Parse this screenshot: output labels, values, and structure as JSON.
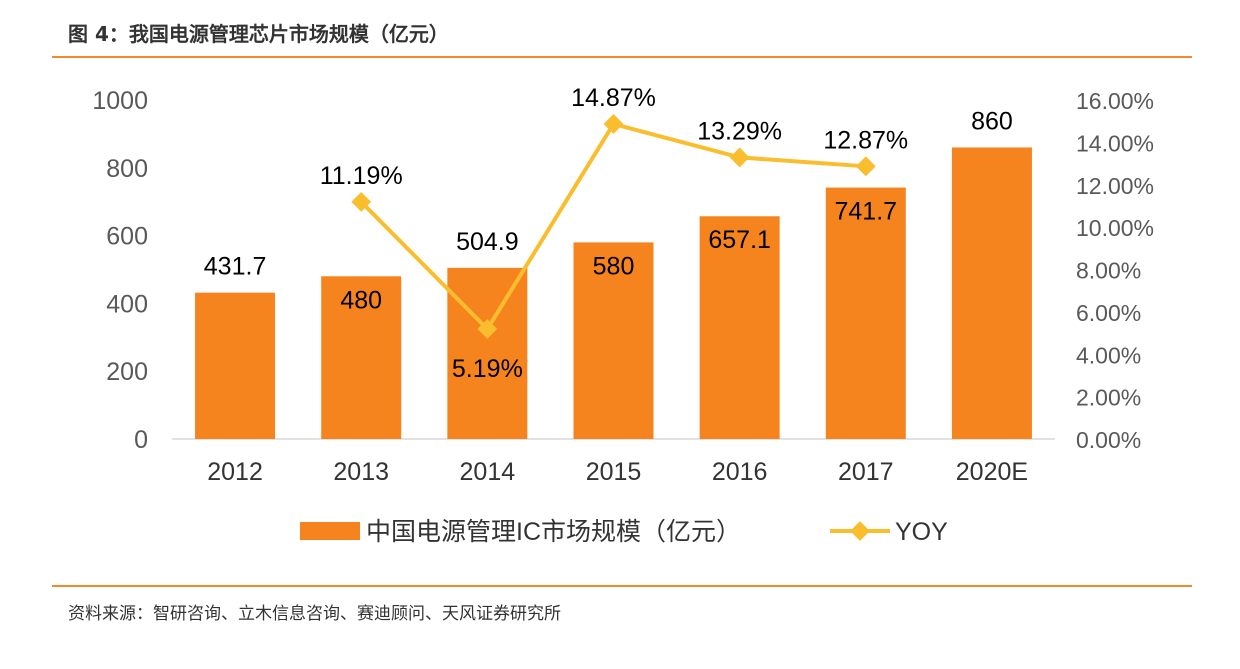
{
  "title": "图 4：我国电源管理芯片市场规模（亿元）",
  "source": "资料来源：智研咨询、立木信息咨询、赛迪顾问、天风证券研究所",
  "chart_data": {
    "type": "bar+line",
    "categories": [
      "2012",
      "2013",
      "2014",
      "2015",
      "2016",
      "2017",
      "2020E"
    ],
    "series": [
      {
        "name": "中国电源管理IC市场规模（亿元）",
        "type": "bar",
        "axis": "left",
        "color": "#f5841f",
        "values": [
          431.7,
          480,
          504.9,
          580,
          657.1,
          741.7,
          860
        ],
        "labels": [
          "431.7",
          "480",
          "504.9",
          "580",
          "657.1",
          "741.7",
          "860"
        ]
      },
      {
        "name": "YOY",
        "type": "line",
        "axis": "right",
        "color": "#f9bd2e",
        "values": [
          null,
          11.19,
          5.19,
          14.87,
          13.29,
          12.87,
          null
        ],
        "labels": [
          "",
          "11.19%",
          "5.19%",
          "14.87%",
          "13.29%",
          "12.87%",
          ""
        ]
      }
    ],
    "left_axis": {
      "min": 0,
      "max": 1000,
      "ticks": [
        "0",
        "200",
        "400",
        "600",
        "800",
        "1000"
      ]
    },
    "right_axis": {
      "min": 0,
      "max": 16,
      "ticks": [
        "0.00%",
        "2.00%",
        "4.00%",
        "6.00%",
        "8.00%",
        "10.00%",
        "12.00%",
        "14.00%",
        "16.00%"
      ]
    },
    "grid": false,
    "legend": "bottom"
  }
}
